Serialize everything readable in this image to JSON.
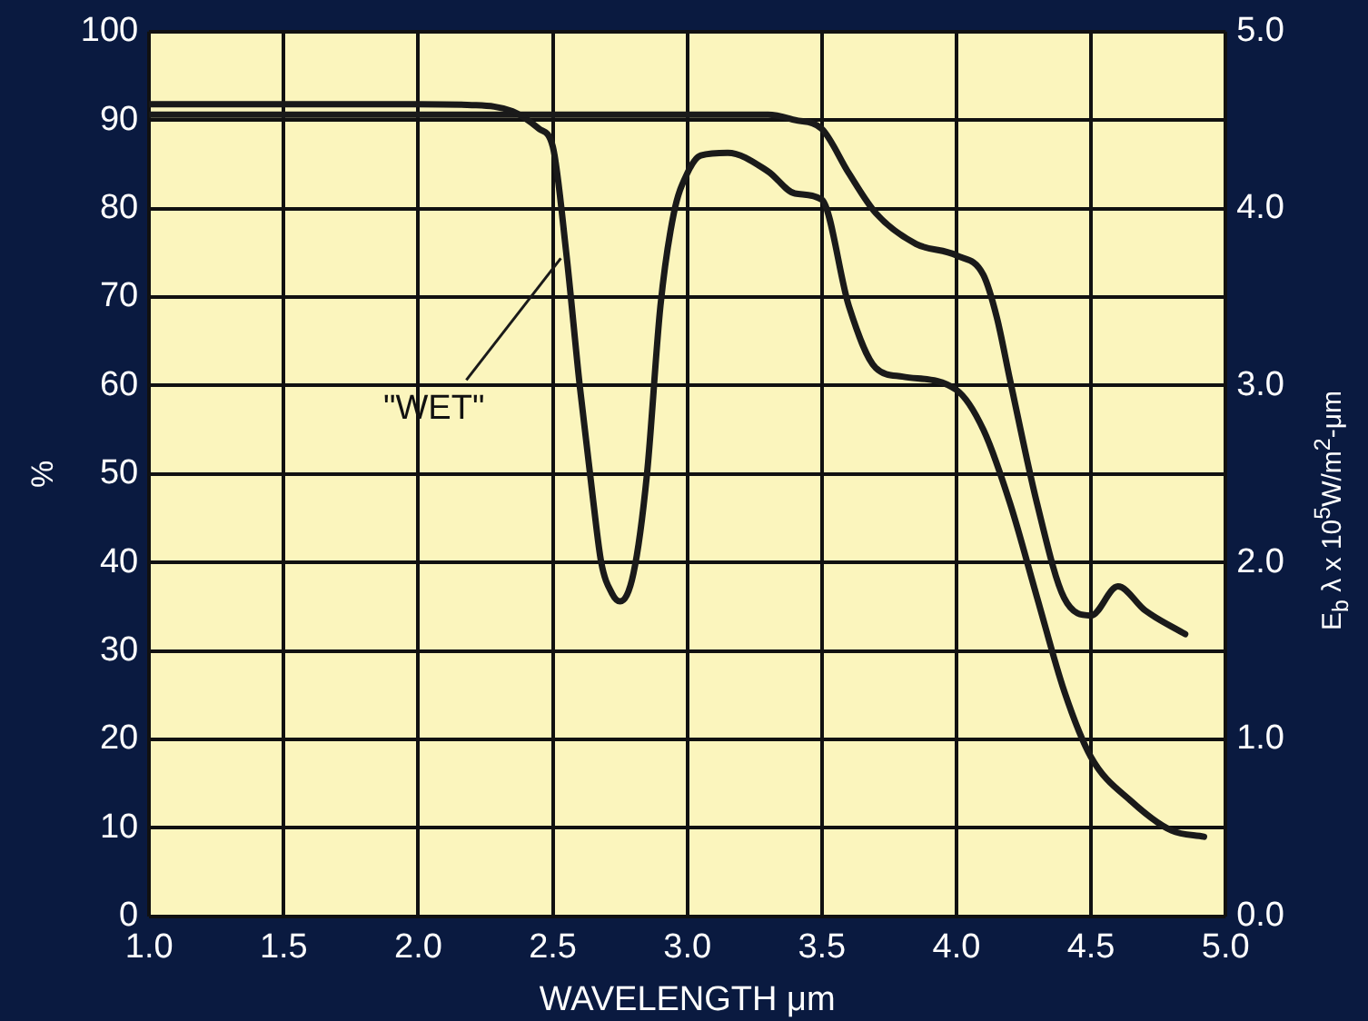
{
  "chart_data": {
    "type": "line",
    "xlabel": "WAVELENGTH μm",
    "ylabel": "%",
    "y2label": "E$_{b}$ λ x 10$^{5}$W/m$^{2}$-μm",
    "xlim": [
      1.0,
      5.0
    ],
    "xticks": [
      {
        "value": 1,
        "label": "1.0"
      },
      1.5,
      {
        "value": 2,
        "label": "2.0"
      },
      2.5,
      {
        "value": 3,
        "label": "3.0"
      },
      3.5,
      {
        "value": 4,
        "label": "4.0"
      },
      4.5,
      {
        "value": 5,
        "label": "5.0"
      }
    ],
    "ylim": [
      0,
      100
    ],
    "yticks": [
      0,
      10,
      20,
      30,
      40,
      50,
      60,
      70,
      80,
      90,
      100
    ],
    "y2lim": [
      0,
      5
    ],
    "y2ticks": [
      {
        "value": 0,
        "label": "0.0"
      },
      {
        "value": 1,
        "label": "1.0"
      },
      {
        "value": 2,
        "label": "2.0"
      },
      {
        "value": 3,
        "label": "3.0"
      },
      {
        "value": 4,
        "label": "4.0"
      },
      {
        "value": 5,
        "label": "5.0"
      }
    ],
    "grid": true,
    "legend": false,
    "marker": "none",
    "line_style": "solid",
    "series": [
      {
        "name": "\"WET\"",
        "color": "#1a1a1a",
        "x": [
          1.0,
          1.5,
          2.0,
          2.2,
          2.35,
          2.45,
          2.5,
          2.55,
          2.6,
          2.65,
          2.68,
          2.72,
          2.75,
          2.8,
          2.85,
          2.9,
          2.95,
          3.0,
          3.05,
          3.15,
          3.3,
          3.4,
          3.5,
          3.6,
          3.7,
          3.8,
          4.0,
          4.1,
          4.2,
          4.3,
          4.4,
          4.5,
          4.65,
          4.8,
          4.92
        ],
        "values": [
          91.8,
          91.8,
          91.8,
          91.7,
          91,
          89,
          87,
          75,
          60,
          47,
          40,
          36.5,
          35.6,
          38.8,
          50,
          69,
          79.5,
          84,
          86,
          86.3,
          84.2,
          81.7,
          81,
          69,
          62,
          61,
          59.5,
          55,
          46.6,
          36,
          25.5,
          18,
          13,
          9.7,
          9
        ]
      },
      {
        "color": "#1a1a1a",
        "x": [
          1.0,
          2.0,
          3.0,
          3.3,
          3.4,
          3.5,
          3.6,
          3.7,
          3.85,
          4.0,
          4.1,
          4.15,
          4.2,
          4.3,
          4.4,
          4.5,
          4.6,
          4.7,
          4.85
        ],
        "values": [
          90.6,
          90.6,
          90.6,
          90.6,
          90,
          89,
          84,
          79.5,
          76,
          74.7,
          72.5,
          67.7,
          60.5,
          46.6,
          36,
          34,
          37.3,
          34.6,
          31.9
        ]
      }
    ]
  }
}
